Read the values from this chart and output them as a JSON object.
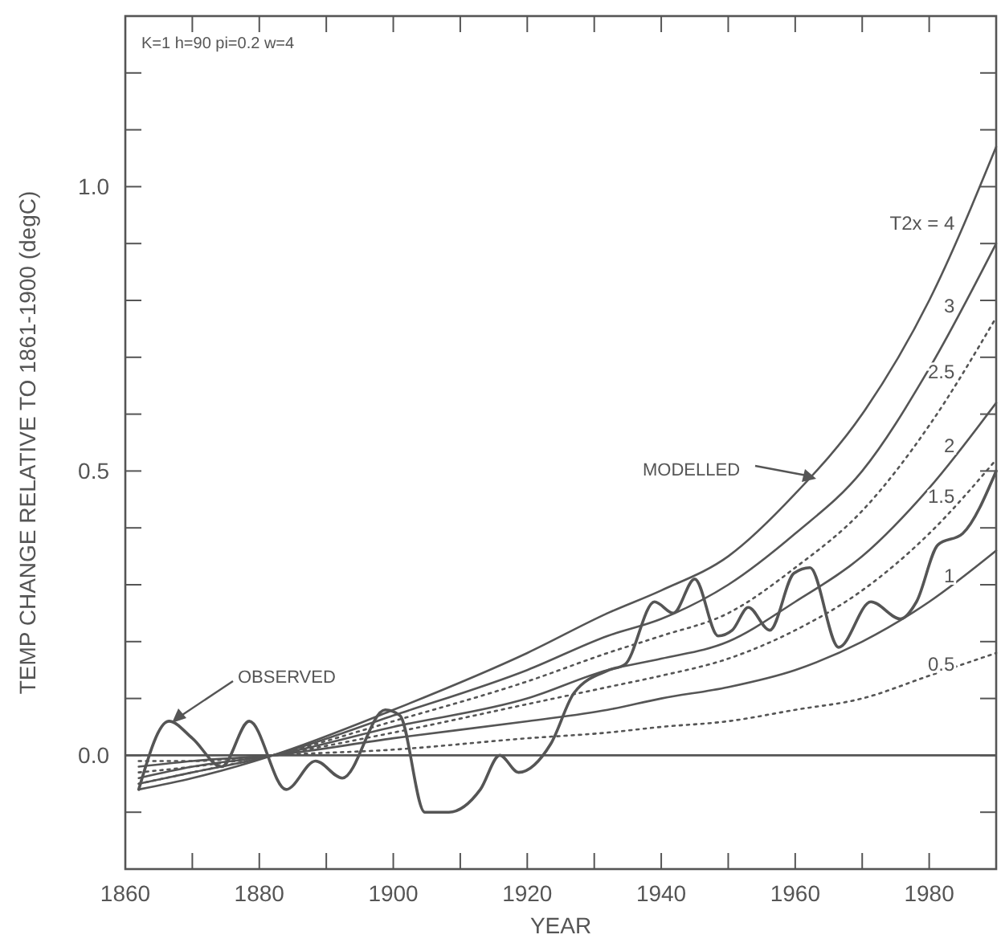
{
  "chart_data": {
    "type": "line",
    "xlabel": "YEAR",
    "ylabel": "TEMP CHANGE RELATIVE TO 1861-1900 (degC)",
    "annotations": [
      "K=1 h=90 pi=0.2 w=4",
      "MODELLED"
    ],
    "xlim": [
      1860,
      1990
    ],
    "ylim": [
      -0.2,
      1.3
    ],
    "xticks": [
      1860,
      {
        "value": 1870,
        "label": null
      },
      1880,
      {
        "value": 1890,
        "label": null
      },
      1900,
      {
        "value": 1910,
        "label": null
      },
      1920,
      {
        "value": 1930,
        "label": null
      },
      1940,
      {
        "value": 1950,
        "label": null
      },
      1960,
      {
        "value": 1970,
        "label": null
      },
      1980
    ],
    "yticks": [
      {
        "value": -0.1,
        "label": null
      },
      {
        "value": 0,
        "label": "0.0"
      },
      {
        "value": 0.1,
        "label": null
      },
      {
        "value": 0.2,
        "label": null
      },
      {
        "value": 0.3,
        "label": null
      },
      {
        "value": 0.4,
        "label": null
      },
      {
        "value": 0.5,
        "label": "0.5"
      },
      {
        "value": 0.6,
        "label": null
      },
      {
        "value": 0.7,
        "label": null
      },
      {
        "value": 0.8,
        "label": null
      },
      {
        "value": 0.9,
        "label": null
      },
      {
        "value": 1.0,
        "label": "1.0"
      },
      {
        "value": 1.1,
        "label": null
      },
      {
        "value": 1.2,
        "label": null
      }
    ],
    "grid": false,
    "legend": "right",
    "marker": "none",
    "ref_lines": [
      {
        "axis": "y",
        "value": 0,
        "color": "#555555"
      }
    ],
    "x": [
      1862,
      1870,
      1882,
      1900,
      1920,
      1932,
      1940,
      1950,
      1960,
      1970,
      1980,
      1990
    ],
    "series": [
      {
        "name": "T2x = 4",
        "color": "#555555",
        "line_style": "solid",
        "values": [
          -0.06,
          -0.04,
          0,
          0.08,
          0.18,
          0.25,
          0.29,
          0.35,
          0.46,
          0.6,
          0.8,
          1.07
        ]
      },
      {
        "name": "3",
        "color": "#555555",
        "line_style": "solid",
        "values": [
          -0.05,
          -0.03,
          0,
          0.07,
          0.15,
          0.21,
          0.24,
          0.3,
          0.39,
          0.5,
          0.68,
          0.9
        ]
      },
      {
        "name": "2.5",
        "color": "#555555",
        "line_style": "dotted",
        "values": [
          -0.05,
          -0.03,
          0,
          0.06,
          0.13,
          0.18,
          0.21,
          0.25,
          0.33,
          0.43,
          0.58,
          0.77
        ]
      },
      {
        "name": "2",
        "color": "#555555",
        "line_style": "solid",
        "values": [
          -0.04,
          -0.02,
          0,
          0.05,
          0.1,
          0.15,
          0.17,
          0.2,
          0.27,
          0.35,
          0.47,
          0.62
        ]
      },
      {
        "name": "1.5",
        "color": "#555555",
        "line_style": "dotted",
        "values": [
          -0.03,
          -0.02,
          0,
          0.04,
          0.09,
          0.12,
          0.14,
          0.17,
          0.22,
          0.29,
          0.39,
          0.52
        ]
      },
      {
        "name": "1",
        "color": "#555555",
        "line_style": "solid",
        "values": [
          -0.02,
          -0.01,
          0,
          0.03,
          0.06,
          0.08,
          0.1,
          0.12,
          0.15,
          0.2,
          0.27,
          0.36
        ]
      },
      {
        "name": "0.5",
        "color": "#555555",
        "line_style": "dotted",
        "values": [
          -0.01,
          -0.01,
          0,
          0.01,
          0.03,
          0.04,
          0.05,
          0.06,
          0.08,
          0.1,
          0.14,
          0.18
        ]
      },
      {
        "name": "OBSERVED",
        "color": "#555555",
        "line_style": "solid",
        "x": [
          1862,
          1866.5,
          1870,
          1874.4,
          1878.5,
          1884,
          1888.4,
          1892.4,
          1898.8,
          1901,
          1904.7,
          1908.3,
          1913,
          1915.9,
          1918.7,
          1923.5,
          1927,
          1932.2,
          1934.6,
          1939,
          1941.8,
          1945,
          1948.5,
          1950.6,
          1953,
          1956.2,
          1959.8,
          1962.2,
          1966.5,
          1971.3,
          1975.7,
          1978.1,
          1981.3,
          1985,
          1990
        ],
        "values": [
          -0.06,
          0.06,
          0.03,
          -0.02,
          0.06,
          -0.06,
          -0.01,
          -0.04,
          0.08,
          0.07,
          -0.1,
          -0.1,
          -0.06,
          0.0,
          -0.03,
          0.02,
          0.11,
          0.15,
          0.16,
          0.27,
          0.25,
          0.31,
          0.21,
          0.22,
          0.26,
          0.22,
          0.32,
          0.33,
          0.19,
          0.27,
          0.24,
          0.27,
          0.37,
          0.39,
          0.5
        ]
      }
    ]
  }
}
